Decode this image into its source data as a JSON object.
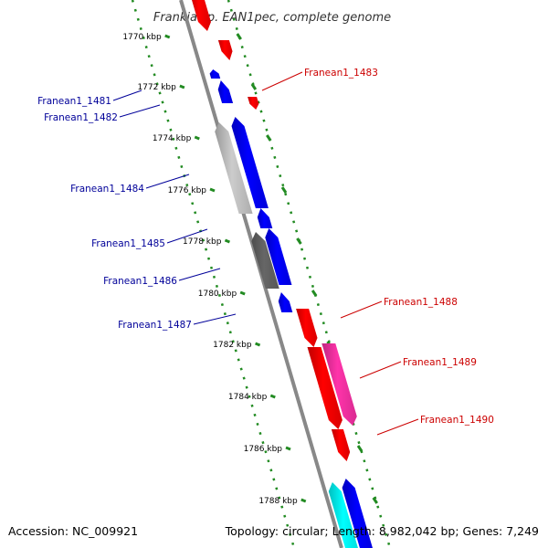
{
  "title": "Frankia sp. EAN1pec, complete genome",
  "footer": {
    "accession": "Accession: NC_009921",
    "summary": "Topology: circular; Length: 8,982,042 bp; Genes: 7,249"
  },
  "colors": {
    "forward": "#ff0000",
    "reverse": "#0000ff",
    "gray_light": "#cccccc",
    "gray_dark": "#666666",
    "magenta": "#ff33aa",
    "cyan": "#00ffff",
    "tick": "#228b22",
    "backbone": "#888888",
    "label_forward": "#cc0000",
    "label_reverse": "#000099"
  },
  "scale_labels": [
    "1770 kbp",
    "1772 kbp",
    "1774 kbp",
    "1776 kbp",
    "1778 kbp",
    "1780 kbp",
    "1782 kbp",
    "1784 kbp",
    "1786 kbp",
    "1788 kbp"
  ],
  "gene_labels": [
    {
      "text": "Franean1_1481",
      "strand": "reverse"
    },
    {
      "text": "Franean1_1482",
      "strand": "reverse"
    },
    {
      "text": "Franean1_1483",
      "strand": "forward"
    },
    {
      "text": "Franean1_1484",
      "strand": "reverse"
    },
    {
      "text": "Franean1_1485",
      "strand": "reverse"
    },
    {
      "text": "Franean1_1486",
      "strand": "reverse"
    },
    {
      "text": "Franean1_1487",
      "strand": "reverse"
    },
    {
      "text": "Franean1_1488",
      "strand": "forward"
    },
    {
      "text": "Franean1_1489",
      "strand": "forward"
    },
    {
      "text": "Franean1_1490",
      "strand": "forward"
    }
  ]
}
